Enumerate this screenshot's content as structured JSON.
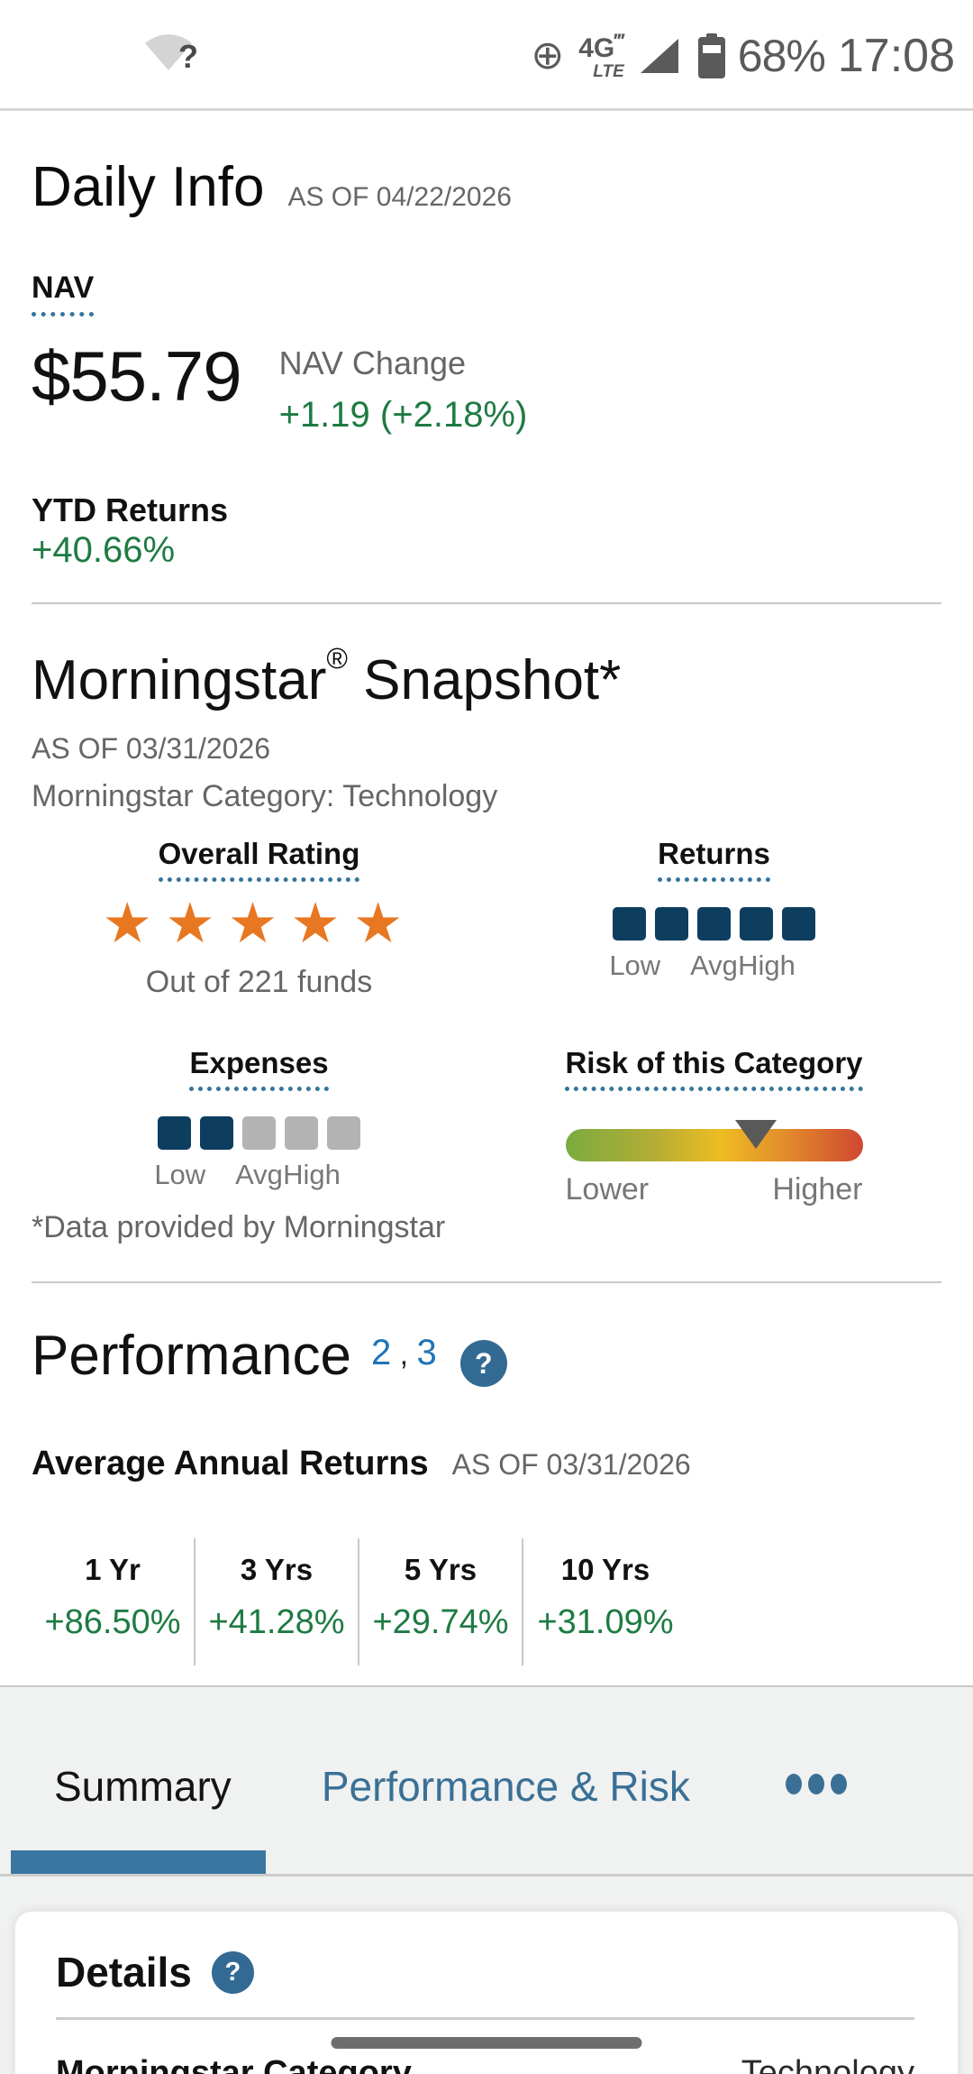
{
  "colors": {
    "green": "#1e7b43",
    "navy": "#0d3e5f",
    "accent-blue": "#3a7096",
    "help-blue": "#336a93",
    "sup-blue": "#2173b4",
    "orange": "#e87722",
    "gray-text": "#666666",
    "status-gray": "#5a5a5a",
    "box-gray": "#b3b3b3",
    "divider": "#c9c9c9",
    "tab-bg": "#f0f1f1",
    "indicator": "#3a76a0",
    "risk-low": "#7aab3f",
    "risk-mid": "#eebc23",
    "risk-high": "#cf4730",
    "pill-gray": "#6e6e6e"
  },
  "icons": {
    "star": "★",
    "help": "?",
    "wifi_question": "?",
    "data_saver": "⊕",
    "waves": "‴"
  },
  "status_bar": {
    "network_main": "4G",
    "network_sub": "LTE",
    "battery_percent": "68%",
    "time": "17:08"
  },
  "daily_info": {
    "title": "Daily Info",
    "as_of": "AS OF 04/22/2026",
    "nav_label": "NAV",
    "nav_value": "$55.79",
    "nav_change_label": "NAV Change",
    "nav_change_value": "+1.19 (+2.18%)",
    "ytd_label": "YTD Returns",
    "ytd_value": "+40.66%"
  },
  "morningstar": {
    "title_brand": "Morningstar",
    "title_reg": "®",
    "title_rest": "Snapshot*",
    "as_of": "AS OF 03/31/2026",
    "category_line": "Morningstar Category: Technology",
    "overall_rating": {
      "label": "Overall Rating",
      "stars": 5,
      "note": "Out of 221 funds"
    },
    "returns_rating": {
      "label": "Returns",
      "filled": 5,
      "total": 5,
      "low": "Low",
      "avg": "Avg",
      "high": "High"
    },
    "expenses_rating": {
      "label": "Expenses",
      "filled": 2,
      "total": 5,
      "low": "Low",
      "avg": "Avg",
      "high": "High"
    },
    "risk": {
      "label": "Risk of this Category",
      "marker_percent": 64,
      "low_label": "Lower",
      "high_label": "Higher"
    },
    "footnote": "*Data provided by Morningstar"
  },
  "performance": {
    "title": "Performance",
    "sup_1": "2",
    "sup_comma": " , ",
    "sup_2": "3",
    "avg_annual_label": "Average Annual Returns",
    "as_of": "AS OF 03/31/2026",
    "returns_table": {
      "columns": [
        "1 Yr",
        "3 Yrs",
        "5 Yrs",
        "10 Yrs"
      ],
      "values": [
        "+86.50%",
        "+41.28%",
        "+29.74%",
        "+31.09%"
      ]
    }
  },
  "tabs": {
    "summary": "Summary",
    "performance_risk": "Performance & Risk"
  },
  "details": {
    "title": "Details",
    "rows": [
      {
        "label": "Morningstar Category",
        "value": "Technology"
      }
    ]
  }
}
